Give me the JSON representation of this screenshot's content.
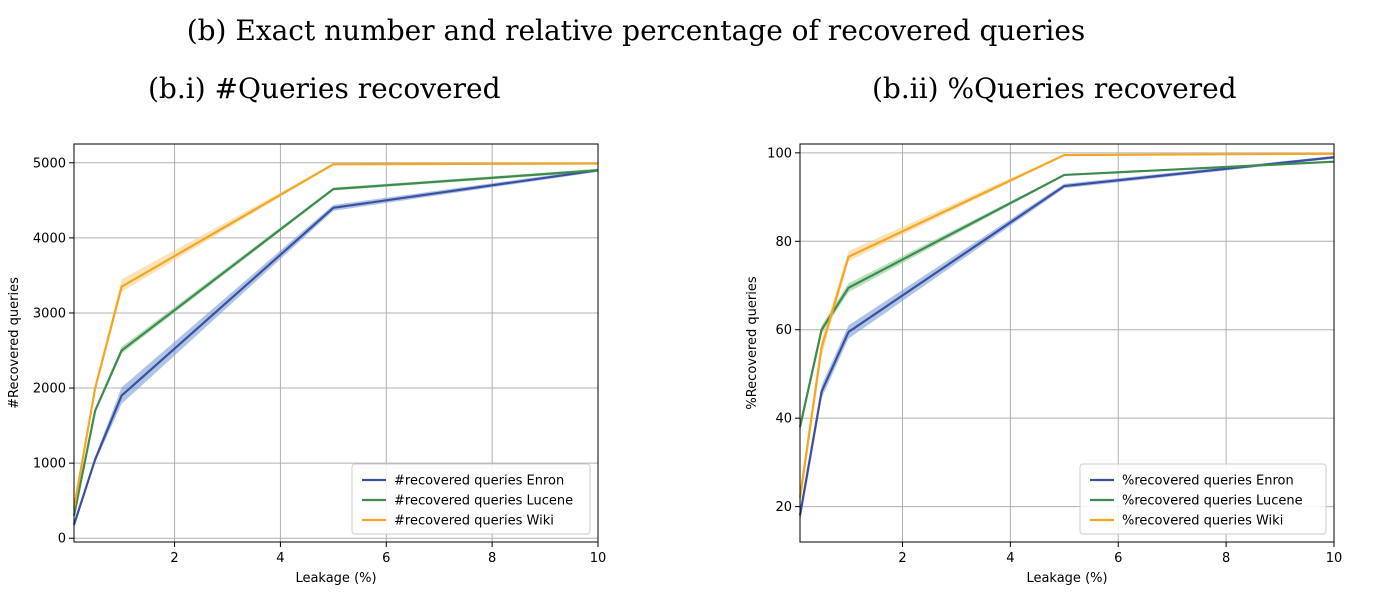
{
  "figure": {
    "title": "(b) Exact number and relative percentage of recovered queries",
    "left_subtitle": "(b.i) #Queries recovered",
    "right_subtitle": "(b.ii) %Queries recovered"
  },
  "colors": {
    "enron": "#3a4fa0",
    "enron_band": "#7b9fd6",
    "lucene": "#3f8a4f",
    "lucene_band": "#8ccf92",
    "wiki": "#f5a623",
    "wiki_band": "#f8d28a",
    "grid": "#b0b0b0"
  },
  "chart_data": [
    {
      "type": "line",
      "title": "",
      "xlabel": "Leakage (%)",
      "ylabel": "#Recovered queries",
      "xlim": [
        0.1,
        10
      ],
      "ylim": [
        -50,
        5250
      ],
      "xticks": [
        2,
        4,
        6,
        8,
        10
      ],
      "yticks": [
        0,
        1000,
        2000,
        3000,
        4000,
        5000
      ],
      "grid": true,
      "legend_position": "lower-right",
      "x": [
        0.1,
        0.5,
        1,
        5,
        10
      ],
      "series": [
        {
          "name": "#recovered queries Enron",
          "key": "enron",
          "values": [
            180,
            1050,
            1900,
            4400,
            4900
          ],
          "band": [
            [
              140,
              1010,
              1790,
              4360,
              4880
            ],
            [
              220,
              1090,
              2010,
              4440,
              4920
            ]
          ]
        },
        {
          "name": "#recovered queries Lucene",
          "key": "lucene",
          "values": [
            300,
            1700,
            2500,
            4650,
            4900
          ],
          "band": [
            [
              270,
              1670,
              2460,
              4630,
              4880
            ],
            [
              330,
              1730,
              2550,
              4670,
              4920
            ]
          ]
        },
        {
          "name": "#recovered queries Wiki",
          "key": "wiki",
          "values": [
            400,
            2000,
            3350,
            4980,
            4990
          ],
          "band": [
            [
              360,
              1950,
              3280,
              4970,
              4985
            ],
            [
              440,
              2050,
              3450,
              4990,
              4995
            ]
          ]
        }
      ]
    },
    {
      "type": "line",
      "title": "",
      "xlabel": "Leakage (%)",
      "ylabel": "%Recovered queries",
      "xlim": [
        0.1,
        10
      ],
      "ylim": [
        12,
        102
      ],
      "xticks": [
        2,
        4,
        6,
        8,
        10
      ],
      "yticks": [
        20,
        40,
        60,
        80,
        100
      ],
      "grid": true,
      "legend_position": "lower-right",
      "x": [
        0.1,
        0.5,
        1,
        5,
        10
      ],
      "series": [
        {
          "name": "%recovered queries Enron",
          "key": "enron",
          "values": [
            18,
            46,
            59.5,
            92.5,
            99
          ],
          "band": [
            [
              16.5,
              44.5,
              58,
              92,
              98.7
            ],
            [
              19.5,
              47.5,
              61,
              93,
              99.3
            ]
          ]
        },
        {
          "name": "%recovered queries Lucene",
          "key": "lucene",
          "values": [
            38,
            60,
            69.5,
            95,
            98
          ],
          "band": [
            [
              37,
              59,
              68.5,
              94.8,
              97.8
            ],
            [
              39,
              61,
              70.5,
              95.2,
              98.2
            ]
          ]
        },
        {
          "name": "%recovered queries Wiki",
          "key": "wiki",
          "values": [
            22,
            56,
            76.5,
            99.5,
            99.8
          ],
          "band": [
            [
              20,
              54,
              75.5,
              99.3,
              99.7
            ],
            [
              24,
              58,
              77.8,
              99.7,
              99.9
            ]
          ]
        }
      ]
    }
  ]
}
